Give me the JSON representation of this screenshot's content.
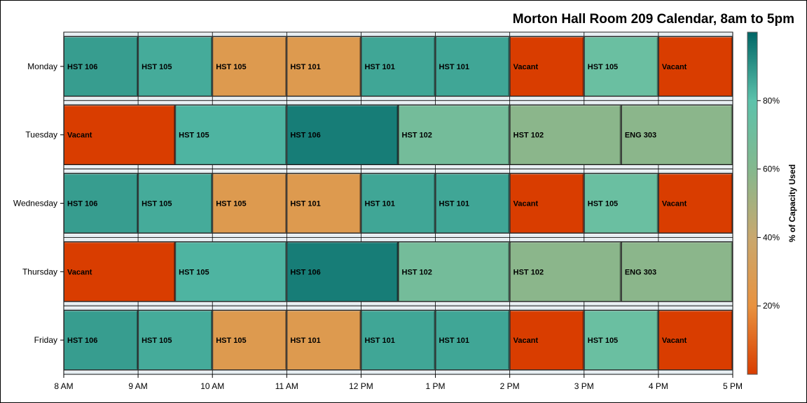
{
  "chart_data": {
    "type": "heatmap",
    "title": "Morton Hall Room 209 Calendar, 8am to 5pm",
    "x_range": [
      8,
      17
    ],
    "x_ticks": [
      {
        "value": 8,
        "label": "8 AM"
      },
      {
        "value": 9,
        "label": "9 AM"
      },
      {
        "value": 10,
        "label": "10 AM"
      },
      {
        "value": 11,
        "label": "11 AM"
      },
      {
        "value": 12,
        "label": "12 PM"
      },
      {
        "value": 13,
        "label": "1 PM"
      },
      {
        "value": 14,
        "label": "2 PM"
      },
      {
        "value": 15,
        "label": "3 PM"
      },
      {
        "value": 16,
        "label": "4 PM"
      },
      {
        "value": 17,
        "label": "5 PM"
      }
    ],
    "colorbar": {
      "title": "% of Capacity Used",
      "range": [
        0,
        100
      ],
      "ticks": [
        {
          "value": 20,
          "label": "20%"
        },
        {
          "value": 40,
          "label": "40%"
        },
        {
          "value": 60,
          "label": "60%"
        },
        {
          "value": 80,
          "label": "80%"
        }
      ],
      "stops": [
        "#d93d00",
        "#e8923f",
        "#c9a86e",
        "#84b88e",
        "#5cc2ab",
        "#006666"
      ]
    },
    "days": [
      {
        "day": "Monday",
        "events": [
          {
            "start": 8,
            "end": 9,
            "label": "HST 106",
            "capacity": 88
          },
          {
            "start": 9,
            "end": 10,
            "label": "HST 105",
            "capacity": 85
          },
          {
            "start": 10,
            "end": 11,
            "label": "HST 105",
            "capacity": 27
          },
          {
            "start": 11,
            "end": 12,
            "label": "HST 101",
            "capacity": 27
          },
          {
            "start": 12,
            "end": 13,
            "label": "HST 101",
            "capacity": 86
          },
          {
            "start": 13,
            "end": 14,
            "label": "HST 101",
            "capacity": 86
          },
          {
            "start": 14,
            "end": 15,
            "label": "Vacant",
            "capacity": 0
          },
          {
            "start": 15,
            "end": 16,
            "label": "HST 105",
            "capacity": 73
          },
          {
            "start": 16,
            "end": 17,
            "label": "Vacant",
            "capacity": 0
          }
        ]
      },
      {
        "day": "Tuesday",
        "events": [
          {
            "start": 8,
            "end": 9.5,
            "label": "Vacant",
            "capacity": 0
          },
          {
            "start": 9.5,
            "end": 11,
            "label": "HST 105",
            "capacity": 83
          },
          {
            "start": 11,
            "end": 12.5,
            "label": "HST 106",
            "capacity": 95
          },
          {
            "start": 12.5,
            "end": 14,
            "label": "HST 102",
            "capacity": 68
          },
          {
            "start": 14,
            "end": 15.5,
            "label": "HST 102",
            "capacity": 58
          },
          {
            "start": 15.5,
            "end": 17,
            "label": "ENG 303",
            "capacity": 58
          }
        ]
      },
      {
        "day": "Wednesday",
        "events": [
          {
            "start": 8,
            "end": 9,
            "label": "HST 106",
            "capacity": 88
          },
          {
            "start": 9,
            "end": 10,
            "label": "HST 105",
            "capacity": 85
          },
          {
            "start": 10,
            "end": 11,
            "label": "HST 105",
            "capacity": 27
          },
          {
            "start": 11,
            "end": 12,
            "label": "HST 101",
            "capacity": 27
          },
          {
            "start": 12,
            "end": 13,
            "label": "HST 101",
            "capacity": 86
          },
          {
            "start": 13,
            "end": 14,
            "label": "HST 101",
            "capacity": 86
          },
          {
            "start": 14,
            "end": 15,
            "label": "Vacant",
            "capacity": 0
          },
          {
            "start": 15,
            "end": 16,
            "label": "HST 105",
            "capacity": 73
          },
          {
            "start": 16,
            "end": 17,
            "label": "Vacant",
            "capacity": 0
          }
        ]
      },
      {
        "day": "Thursday",
        "events": [
          {
            "start": 8,
            "end": 9.5,
            "label": "Vacant",
            "capacity": 0
          },
          {
            "start": 9.5,
            "end": 11,
            "label": "HST 105",
            "capacity": 83
          },
          {
            "start": 11,
            "end": 12.5,
            "label": "HST 106",
            "capacity": 95
          },
          {
            "start": 12.5,
            "end": 14,
            "label": "HST 102",
            "capacity": 68
          },
          {
            "start": 14,
            "end": 15.5,
            "label": "HST 102",
            "capacity": 58
          },
          {
            "start": 15.5,
            "end": 17,
            "label": "ENG 303",
            "capacity": 58
          }
        ]
      },
      {
        "day": "Friday",
        "events": [
          {
            "start": 8,
            "end": 9,
            "label": "HST 106",
            "capacity": 88
          },
          {
            "start": 9,
            "end": 10,
            "label": "HST 105",
            "capacity": 85
          },
          {
            "start": 10,
            "end": 11,
            "label": "HST 105",
            "capacity": 27
          },
          {
            "start": 11,
            "end": 12,
            "label": "HST 101",
            "capacity": 27
          },
          {
            "start": 12,
            "end": 13,
            "label": "HST 101",
            "capacity": 86
          },
          {
            "start": 13,
            "end": 14,
            "label": "HST 101",
            "capacity": 86
          },
          {
            "start": 14,
            "end": 15,
            "label": "Vacant",
            "capacity": 0
          },
          {
            "start": 15,
            "end": 16,
            "label": "HST 105",
            "capacity": 73
          },
          {
            "start": 16,
            "end": 17,
            "label": "Vacant",
            "capacity": 0
          }
        ]
      }
    ]
  }
}
